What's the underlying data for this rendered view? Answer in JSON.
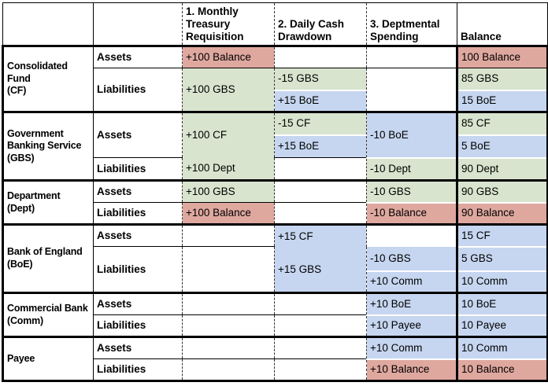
{
  "colors": {
    "red": "#dfa89f",
    "green": "#d8e4ce",
    "blue": "#c6d6f0",
    "grid": "#000000"
  },
  "header": {
    "requisition": "1. Monthly\nTreasury\nRequisition",
    "drawdown": "2. Daily Cash\nDrawdown",
    "spending": "3. Deptmental\nSpending",
    "balance": "Balance"
  },
  "labels": {
    "assets": "Assets",
    "liabilities": "Liabilities"
  },
  "entities": {
    "cf": "Consolidated Fund\n(CF)",
    "gbs": "Government\nBanking Service\n(GBS)",
    "dept": "Department\n(Dept)",
    "boe": "Bank of England\n(BoE)",
    "comm": "Commercial Bank\n(Comm)",
    "payee": "Payee"
  },
  "cells": {
    "cf_assets_req": "+100 Balance",
    "cf_assets_bal": "100 Balance",
    "cf_liab_req": "+100 GBS",
    "cf_liab_dcd_1": "-15 GBS",
    "cf_liab_dcd_2": "+15 BoE",
    "cf_liab_bal_1": "85 GBS",
    "cf_liab_bal_2": "15 BoE",
    "gbs_assets_req": "+100 CF",
    "gbs_liab_req": "+100 Dept",
    "gbs_assets_dcd_1": "-15 CF",
    "gbs_assets_dcd_2": "+15 BoE",
    "gbs_assets_ds": "-10 BoE",
    "gbs_assets_bal_1": "85 CF",
    "gbs_assets_bal_2": "5 BoE",
    "gbs_liab_ds": "-10 Dept",
    "gbs_liab_bal": "90 Dept",
    "dept_assets_req": "+100 GBS",
    "dept_assets_ds": "-10 GBS",
    "dept_assets_bal": "90 GBS",
    "dept_liab_req": "+100 Balance",
    "dept_liab_ds": "-10 Balance",
    "dept_liab_bal": "90 Balance",
    "boe_assets_dcd": "+15 CF",
    "boe_liab_dcd": "+15 GBS",
    "boe_assets_bal": "15 CF",
    "boe_liab_ds_1": "-10 GBS",
    "boe_liab_ds_2": "+10 Comm",
    "boe_liab_bal_1": "5 GBS",
    "boe_liab_bal_2": "10 Comm",
    "comm_assets_ds": "+10 BoE",
    "comm_assets_bal": "10 BoE",
    "comm_liab_ds": "+10 Payee",
    "comm_liab_bal": "10 Payee",
    "payee_assets_ds": "+10 Comm",
    "payee_assets_bal": "10 Comm",
    "payee_liab_ds": "+10 Balance",
    "payee_liab_bal": "10 Balance"
  }
}
